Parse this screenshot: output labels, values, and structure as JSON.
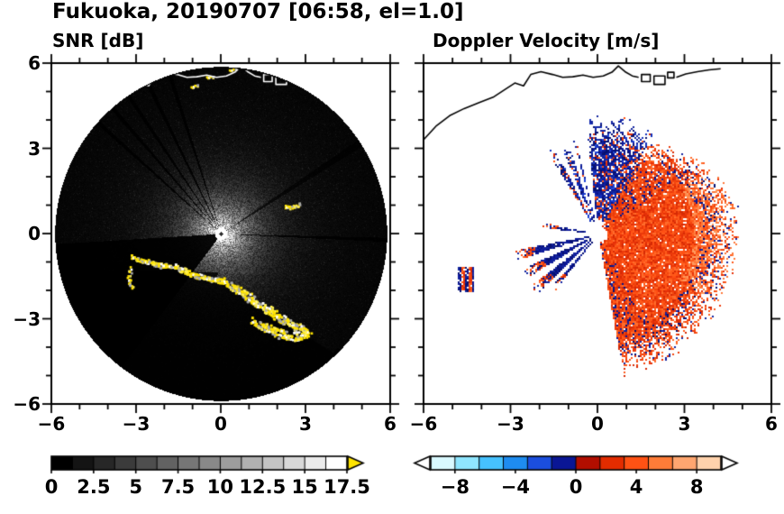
{
  "title": "Fukuoka, 20190707 [06:58, el=1.0]",
  "panels": {
    "left": {
      "title": "SNR [dB]"
    },
    "right": {
      "title": "Doppler Velocity [m/s]"
    }
  },
  "chart_data": [
    {
      "type": "heatmap",
      "title": "SNR [dB]",
      "xlim": [
        -6,
        6
      ],
      "ylim": [
        -6,
        6
      ],
      "xticks": [
        -6,
        -3,
        0,
        3,
        6
      ],
      "xtick_labels": [
        "−6",
        "−3",
        "0",
        "3",
        "6"
      ],
      "yticks": [
        -6,
        -3,
        0,
        3,
        6
      ],
      "ytick_labels": [
        "−6",
        "−3",
        "0",
        "3",
        "6"
      ],
      "minor_tick_step": 1,
      "scan": {
        "center_xy": [
          0,
          0
        ],
        "radius": 5.9,
        "features": [
          "bright white core at radar site fading with range",
          "black blocked wedge toward WSW",
          "thin blocked-beam rays in NW fan and a dark ENE streak",
          "yellow ground-clutter arc along the coastline S to SE of radar",
          "yellow clutter dash near (2.5, 1.0)",
          "white coastline trace along the northern edge"
        ],
        "clutter_colors": [
          "#ffe400",
          "#ffe400",
          "#ffe400",
          "#fff155",
          "#ffffff",
          "#aaaaaa"
        ]
      },
      "colorbar": {
        "min": 0,
        "max": 17.5,
        "ticks": [
          0,
          2.5,
          5,
          7.5,
          10,
          12.5,
          15,
          17.5
        ],
        "tick_labels": [
          "0",
          "2.5",
          "5",
          "7.5",
          "10",
          "12.5",
          "15",
          "17.5"
        ],
        "segments": 14,
        "scheme": "grayscale black to white",
        "over_arrow_color": "#ffe400"
      }
    },
    {
      "type": "heatmap",
      "title": "Doppler Velocity [m/s]",
      "xlim": [
        -6,
        6
      ],
      "ylim": [
        -6,
        6
      ],
      "xticks": [
        -6,
        -3,
        0,
        3,
        6
      ],
      "xtick_labels": [
        "−6",
        "−3",
        "0",
        "3",
        "6"
      ],
      "yticks": [
        -6,
        -3,
        0,
        3,
        6
      ],
      "scan": {
        "features": [
          "broad positive-velocity (red/orange) region E to SE of radar out to ~4.5",
          "negative-velocity (blue/navy) sector to the N and NNE",
          "narrow navy rays toward WSW separated by white missing beams",
          "isolated echo patch near (−4.5, −1.6)",
          "sparse navy specks along the far SE rim",
          "black coastline trace along the north"
        ],
        "palette": {
          "positive": [
            "#e63008",
            "#f2460f",
            "#ff5a1a",
            "#eb3a0a",
            "#ff6c2c",
            "#d62a04",
            "#ff5014"
          ],
          "positive_light": [
            "#ff8848",
            "#ff9a5e",
            "#ff7838"
          ],
          "negative": [
            "#1a3bd0",
            "#2148d8",
            "#1330bb"
          ],
          "negative_dark": [
            "#0a1487",
            "#0d1a9b",
            "#061070",
            "#13249f"
          ]
        }
      },
      "colorbar": {
        "min": -9.6,
        "max": 9.6,
        "ticks": [
          -8,
          -4,
          0,
          4,
          8
        ],
        "tick_labels": [
          "−8",
          "−4",
          "0",
          "4",
          "8"
        ],
        "scheme": "diverging cyan-navy to red-pale-orange",
        "neg_colors": [
          "#d9f9ff",
          "#8fe6ff",
          "#46c2ff",
          "#1e8cf0",
          "#1b4ede",
          "#0a1695"
        ],
        "pos_colors": [
          "#b20e00",
          "#e32c00",
          "#ff5214",
          "#ff7c38",
          "#ffa670",
          "#ffd2ac"
        ]
      }
    }
  ],
  "colors": {
    "background": "#ffffff",
    "axis": "#000000",
    "clutter_yellow": "#ffe400"
  }
}
